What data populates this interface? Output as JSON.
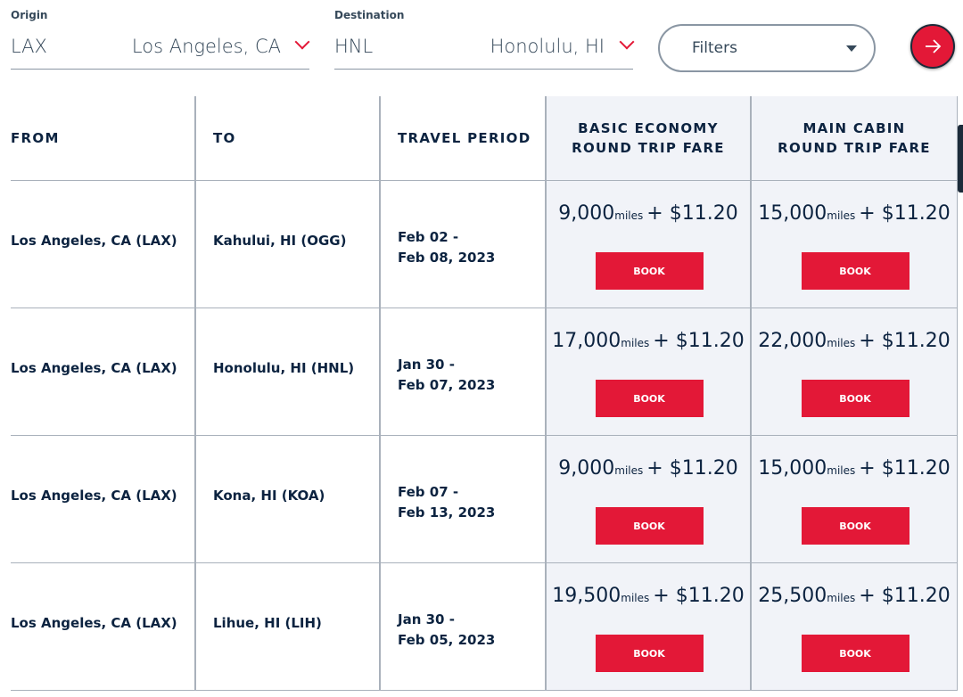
{
  "search": {
    "origin": {
      "label": "Origin",
      "code": "LAX",
      "city": "Los Angeles, CA"
    },
    "destination": {
      "label": "Destination",
      "code": "HNL",
      "city": "Honolulu, HI"
    },
    "filters": "Filters"
  },
  "table": {
    "headers": [
      [
        "FROM"
      ],
      [
        "TO"
      ],
      [
        "TRAVEL PERIOD"
      ],
      [
        "BASIC ECONOMY",
        "ROUND TRIP FARE"
      ],
      [
        "MAIN CABIN",
        "ROUND TRIP FARE"
      ]
    ],
    "rows": [
      {
        "from": "Los Angeles, CA (LAX)",
        "to": "Kahului, HI (OGG)",
        "period": [
          "Feb 02 -",
          "Feb 08, 2023"
        ],
        "fares": [
          {
            "miles": "9,000",
            "unit": "miles",
            "price": "+ $11.20",
            "button": "BOOK"
          },
          {
            "miles": "15,000",
            "unit": "miles",
            "price": "+ $11.20",
            "button": "BOOK"
          }
        ]
      },
      {
        "from": "Los Angeles, CA (LAX)",
        "to": "Honolulu, HI (HNL)",
        "period": [
          "Jan 30 -",
          "Feb 07, 2023"
        ],
        "fares": [
          {
            "miles": "17,000",
            "unit": "miles",
            "price": "+ $11.20",
            "button": "BOOK"
          },
          {
            "miles": "22,000",
            "unit": "miles",
            "price": "+ $11.20",
            "button": "BOOK"
          }
        ]
      },
      {
        "from": "Los Angeles, CA (LAX)",
        "to": "Kona, HI (KOA)",
        "period": [
          "Feb 07 -",
          "Feb 13, 2023"
        ],
        "fares": [
          {
            "miles": "9,000",
            "unit": "miles",
            "price": "+ $11.20",
            "button": "BOOK"
          },
          {
            "miles": "15,000",
            "unit": "miles",
            "price": "+ $11.20",
            "button": "BOOK"
          }
        ]
      },
      {
        "from": "Los Angeles, CA (LAX)",
        "to": "Lihue, HI (LIH)",
        "period": [
          "Jan 30 -",
          "Feb 05, 2023"
        ],
        "fares": [
          {
            "miles": "19,500",
            "unit": "miles",
            "price": "+ $11.20",
            "button": "BOOK"
          },
          {
            "miles": "25,500",
            "unit": "miles",
            "price": "+ $11.20",
            "button": "BOOK"
          }
        ]
      }
    ]
  }
}
